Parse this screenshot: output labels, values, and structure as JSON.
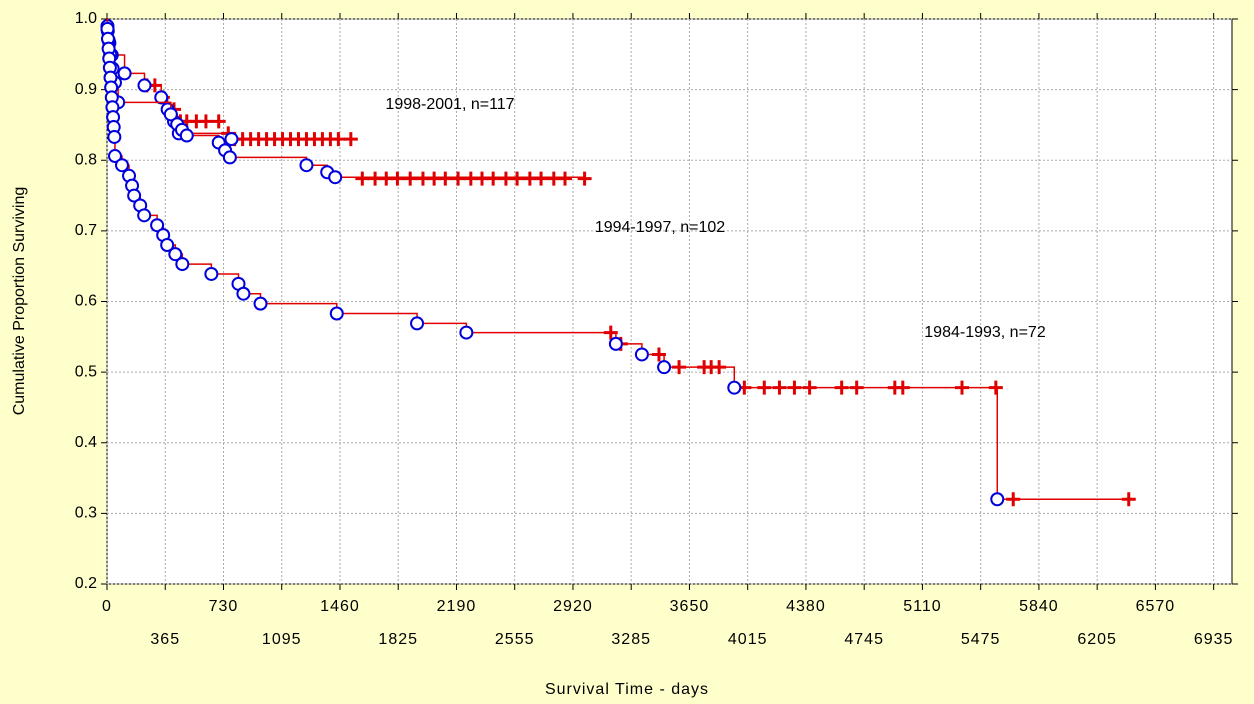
{
  "chart_data": {
    "type": "km",
    "xlabel": "Survival Time - days",
    "ylabel": "Cumulative Proportion Surviving",
    "xlim": [
      0,
      7050
    ],
    "ylim": [
      0.2,
      1.0
    ],
    "xticks": [
      0,
      365,
      730,
      1095,
      1460,
      1825,
      2190,
      2555,
      2920,
      3285,
      3650,
      4015,
      4380,
      4745,
      5110,
      5475,
      5840,
      6205,
      6570,
      6935
    ],
    "yticks": [
      0.2,
      0.3,
      0.4,
      0.5,
      0.6,
      0.7,
      0.8,
      0.9,
      {
        "value": 1.0,
        "label": "1.0"
      }
    ],
    "grid": true,
    "line_color": "#e00000",
    "event_color": "#0000dd",
    "annotations": [
      "1998-2001, n=117",
      "1994-1997, n=102",
      "1984-1993, n=72"
    ],
    "series": [
      {
        "name": "1998-2001",
        "x": [
          5,
          15,
          30,
          110,
          235,
          340,
          380,
          420,
          450,
          780
        ],
        "values": [
          0.983,
          0.966,
          0.949,
          0.923,
          0.906,
          0.889,
          0.872,
          0.855,
          0.838,
          0.83
        ],
        "censor_x": [
          250,
          300,
          350,
          420,
          460,
          500,
          560,
          620,
          700,
          760,
          800,
          850,
          900,
          950,
          1000,
          1050,
          1100,
          1150,
          1200,
          1250,
          1300,
          1350,
          1400,
          1450,
          1528
        ],
        "censor_values": [
          0.906,
          0.906,
          0.889,
          0.872,
          0.855,
          0.855,
          0.855,
          0.855,
          0.855,
          0.838,
          0.83,
          0.83,
          0.83,
          0.83,
          0.83,
          0.83,
          0.83,
          0.83,
          0.83,
          0.83,
          0.83,
          0.83,
          0.83,
          0.83,
          0.83
        ]
      },
      {
        "name": "1994-1997",
        "x": [
          3,
          10,
          20,
          35,
          50,
          70,
          400,
          440,
          470,
          500,
          700,
          740,
          770,
          1250,
          1380,
          1430
        ],
        "values": [
          0.99,
          0.97,
          0.95,
          0.93,
          0.91,
          0.882,
          0.865,
          0.851,
          0.843,
          0.835,
          0.825,
          0.814,
          0.804,
          0.793,
          0.783,
          0.776
        ],
        "censor_x": [
          1600,
          1680,
          1750,
          1820,
          1900,
          1980,
          2050,
          2120,
          2200,
          2280,
          2350,
          2420,
          2500,
          2570,
          2650,
          2720,
          2800,
          2870,
          2993
        ],
        "censor_values": [
          0.774,
          0.774,
          0.774,
          0.774,
          0.774,
          0.774,
          0.774,
          0.774,
          0.774,
          0.774,
          0.774,
          0.774,
          0.774,
          0.774,
          0.774,
          0.774,
          0.774,
          0.774,
          0.774
        ]
      },
      {
        "name": "1984-1993",
        "x": [
          3,
          6,
          10,
          14,
          18,
          22,
          26,
          30,
          34,
          38,
          42,
          46,
          50,
          94,
          138,
          157,
          170,
          208,
          233,
          314,
          352,
          377,
          428,
          472,
          654,
          824,
          855,
          962,
          1440,
          1943,
          2252,
          3189,
          3352,
          3491,
          3931,
          5579
        ],
        "values": [
          0.986,
          0.972,
          0.958,
          0.944,
          0.931,
          0.917,
          0.903,
          0.889,
          0.875,
          0.861,
          0.847,
          0.833,
          0.806,
          0.793,
          0.778,
          0.764,
          0.75,
          0.736,
          0.722,
          0.708,
          0.694,
          0.68,
          0.667,
          0.653,
          0.639,
          0.625,
          0.611,
          0.597,
          0.583,
          0.569,
          0.556,
          0.54,
          0.525,
          0.507,
          0.478,
          0.32
        ],
        "censor_x": [
          3157,
          3220,
          3459,
          3585,
          3742,
          3786,
          3836,
          3994,
          4119,
          4214,
          4308,
          4403,
          4604,
          4698,
          4937,
          4987,
          5358,
          5570,
          5679,
          6403
        ],
        "censor_values": [
          0.556,
          0.54,
          0.525,
          0.507,
          0.507,
          0.507,
          0.507,
          0.478,
          0.478,
          0.478,
          0.478,
          0.478,
          0.478,
          0.478,
          0.478,
          0.478,
          0.478,
          0.478,
          0.32,
          0.32
        ]
      }
    ]
  }
}
